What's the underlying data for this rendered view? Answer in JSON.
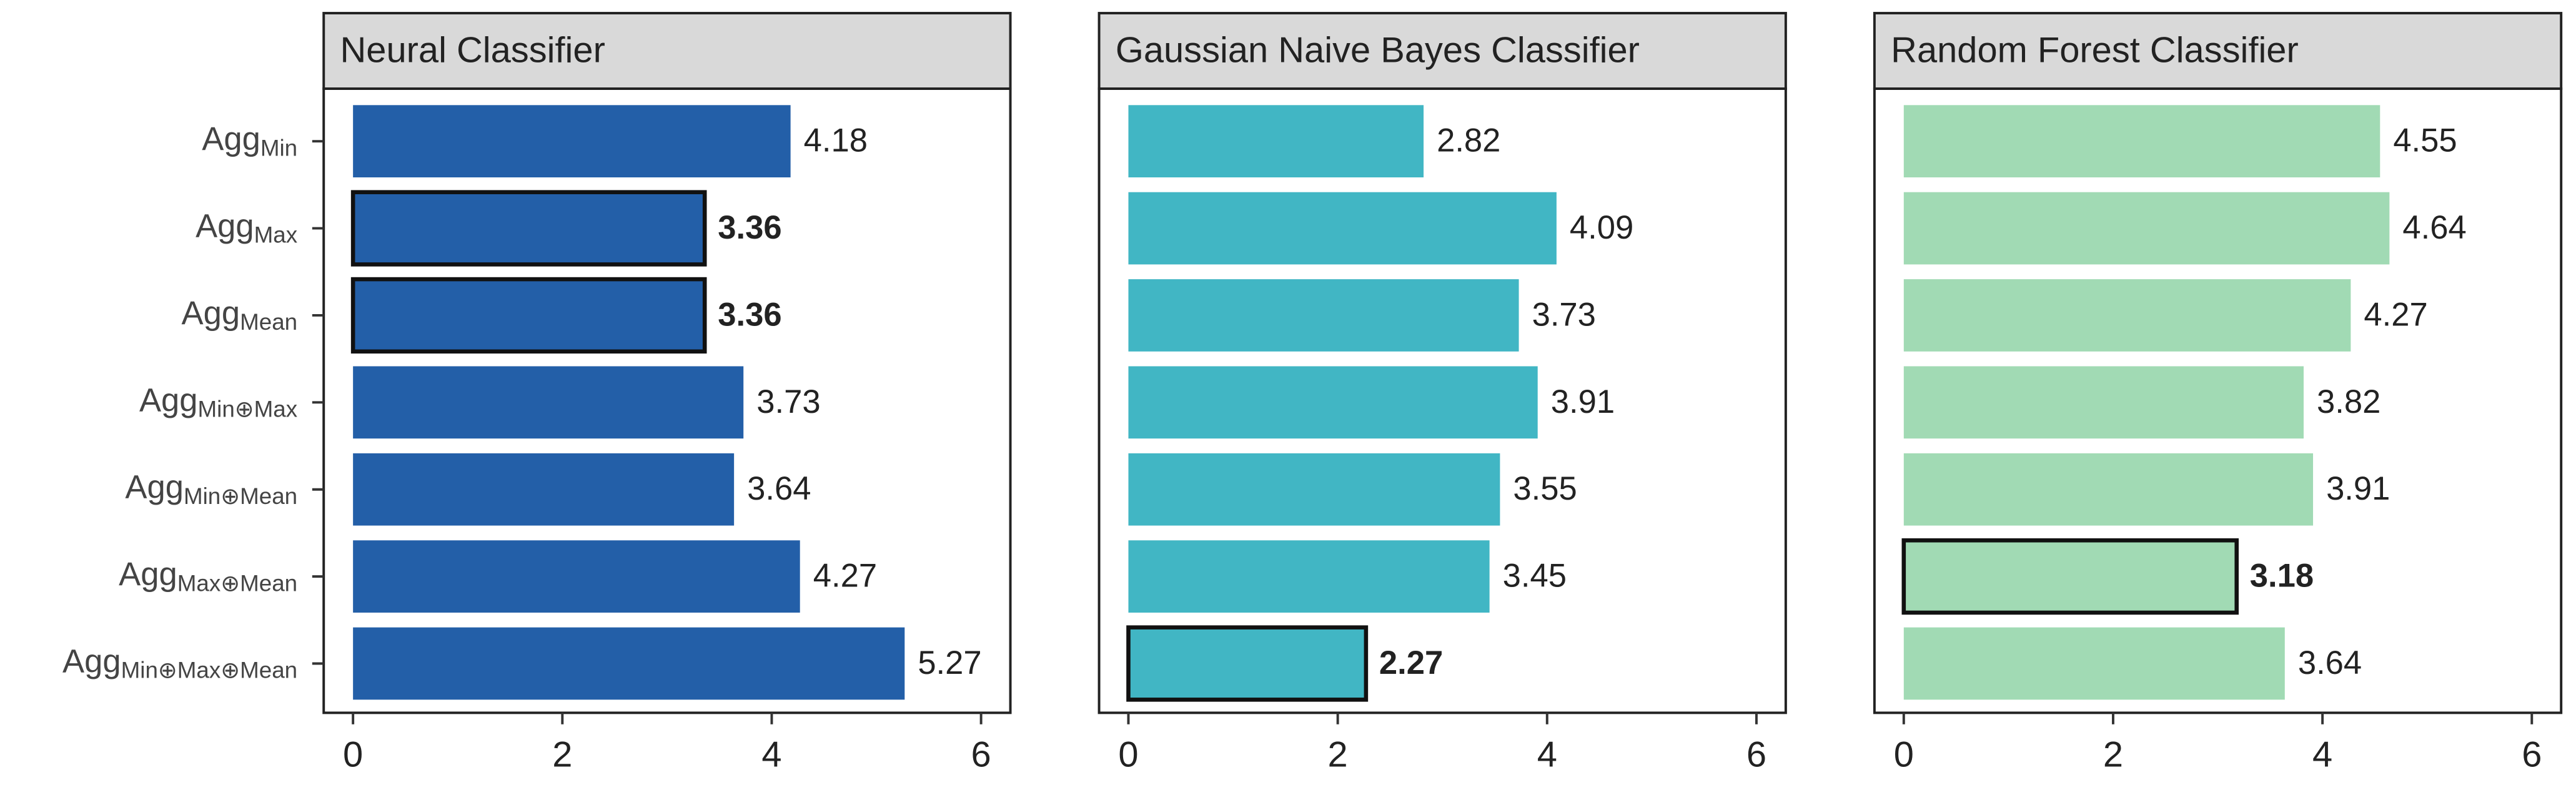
{
  "chart_data": [
    {
      "type": "bar",
      "title": "Neural Classifier",
      "color": "#235fa8",
      "categories": [
        {
          "base": "Agg",
          "sub": "Min"
        },
        {
          "base": "Agg",
          "sub": "Max"
        },
        {
          "base": "Agg",
          "sub": "Mean"
        },
        {
          "base": "Agg",
          "sub": "Min⊕Max"
        },
        {
          "base": "Agg",
          "sub": "Min⊕Mean"
        },
        {
          "base": "Agg",
          "sub": "Max⊕Mean"
        },
        {
          "base": "Agg",
          "sub": "Min⊕Max⊕Mean"
        }
      ],
      "values": [
        4.18,
        3.36,
        3.36,
        3.73,
        3.64,
        4.27,
        5.27
      ],
      "highlight": [
        1,
        2
      ],
      "xlim": [
        -0.28,
        6.28
      ],
      "xticks": [
        0,
        2,
        4,
        6
      ]
    },
    {
      "type": "bar",
      "title": "Gaussian Naive Bayes Classifier",
      "color": "#41b6c4",
      "values": [
        2.82,
        4.09,
        3.73,
        3.91,
        3.55,
        3.45,
        2.27
      ],
      "highlight": [
        6
      ],
      "xlim": [
        -0.28,
        6.28
      ],
      "xticks": [
        0,
        2,
        4,
        6
      ]
    },
    {
      "type": "bar",
      "title": "Random Forest Classifier",
      "color": "#a1dab4",
      "values": [
        4.55,
        4.64,
        4.27,
        3.82,
        3.91,
        3.18,
        3.64
      ],
      "highlight": [
        5
      ],
      "xlim": [
        -0.28,
        6.28
      ],
      "xticks": [
        0,
        2,
        4,
        6
      ]
    }
  ]
}
